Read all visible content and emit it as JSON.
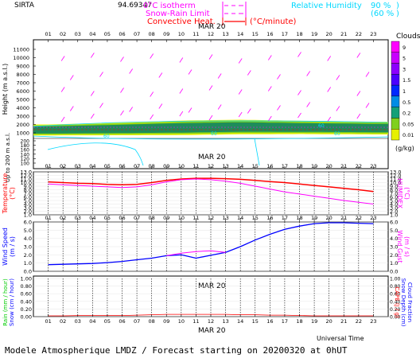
{
  "header": {
    "station": "SIRTA",
    "station_id": "94.69347",
    "legend": {
      "isotherm": "0°C isotherm",
      "snow_rain": "Snow-Rain Limit",
      "convective": "Convective Heat.",
      "convective_unit": "(°C/minute)",
      "rh": "Relative Humidity",
      "rh_90": "90 %",
      "rh_60": "(60 %"
    }
  },
  "dates": {
    "top": "MAR 20",
    "mid": "MAR 20",
    "low": "MAR 20",
    "bottom": "MAR 20"
  },
  "hours": [
    "01",
    "02",
    "03",
    "04",
    "05",
    "06",
    "07",
    "08",
    "09",
    "10",
    "11",
    "12",
    "13",
    "14",
    "15",
    "16",
    "17",
    "18",
    "19",
    "20",
    "21",
    "22",
    "23"
  ],
  "footer": {
    "universal_time": "Universal Time",
    "caption": "Modele Atmospherique LMDZ / Forecast starting on 20200320 at 0hUT"
  },
  "colors": {
    "temperature": "#ff0000",
    "humidex": "#ff00ff",
    "wind": "#0000ff",
    "gust": "#ff00ff",
    "rh": "#00d8ff",
    "cloud_dark": "#1e8c5a",
    "cloud_mid": "#7fd01e",
    "cloud_light": "#f0f000"
  },
  "chart_data": [
    {
      "type": "heatmap",
      "ylabel": "Height (m a.s.l.)",
      "ylabel_lower": "Up to 200 m a.s.l.",
      "yticks_upper": [
        "11000",
        "10000",
        "9000",
        "8000",
        "7000",
        "6000",
        "5000",
        "4000",
        "3000",
        "2000",
        "1000"
      ],
      "yticks_lower": [
        "200",
        "180",
        "160",
        "140",
        "120",
        "100"
      ],
      "rh_contour_label": "60",
      "colorbar": {
        "title": "Clouds",
        "unit": "(g/kg)",
        "levels": [
          "9",
          "5",
          "3",
          "1.5",
          "1",
          "0.5",
          "0.2",
          "0.05",
          "0.01"
        ],
        "colors": [
          "#ff00ff",
          "#c800ff",
          "#8c00ff",
          "#4b00ff",
          "#0028ff",
          "#008ce6",
          "#14a078",
          "#7fd01e",
          "#e6f000"
        ]
      },
      "cloud_layer": [
        {
          "hour": 1,
          "base": 900,
          "top": 1800,
          "density": 0.6
        },
        {
          "hour": 6,
          "base": 950,
          "top": 2000,
          "density": 0.8
        },
        {
          "hour": 10,
          "base": 1000,
          "top": 2200,
          "density": 1.0
        },
        {
          "hour": 14,
          "base": 1100,
          "top": 2300,
          "density": 1.0
        },
        {
          "hour": 18,
          "base": 1100,
          "top": 2200,
          "density": 0.8
        },
        {
          "hour": 23,
          "base": 1050,
          "top": 2100,
          "density": 0.6
        }
      ]
    },
    {
      "type": "line",
      "ylabel": "Temperature",
      "ylabel_unit": "(°C)",
      "y2label": "HUMIDEX",
      "y2label_unit": "(°C)",
      "yticks": [
        "13.0",
        "12.0",
        "11.0",
        "10.0",
        "9.0",
        "8.0",
        "7.0",
        "6.0",
        "5.0",
        "4.0",
        "3.0",
        "2.0",
        "1.0"
      ],
      "ylim": [
        1.0,
        13.0
      ],
      "x": [
        1,
        2,
        3,
        4,
        5,
        6,
        7,
        8,
        9,
        10,
        11,
        12,
        13,
        14,
        15,
        16,
        17,
        18,
        19,
        20,
        21,
        22,
        23
      ],
      "series": [
        {
          "name": "Temperature",
          "values": [
            10.2,
            10.0,
            9.8,
            9.7,
            9.5,
            9.4,
            9.5,
            10.0,
            10.6,
            11.0,
            11.2,
            11.2,
            11.1,
            10.9,
            10.6,
            10.3,
            10.0,
            9.6,
            9.2,
            8.8,
            8.4,
            8.0,
            7.5
          ]
        },
        {
          "name": "HUMIDEX",
          "values": [
            9.6,
            9.4,
            9.2,
            9.0,
            8.8,
            8.6,
            8.8,
            9.4,
            10.2,
            10.8,
            11.0,
            10.8,
            10.4,
            9.8,
            9.0,
            8.2,
            7.4,
            6.8,
            6.2,
            5.6,
            5.0,
            4.5,
            4.0
          ]
        }
      ]
    },
    {
      "type": "line",
      "ylabel": "Wind Speed",
      "ylabel_unit": "(m / s)",
      "y2label": "Wind Gust",
      "y2label_unit": "(m / s)",
      "yticks": [
        "6.0",
        "5.0",
        "4.0",
        "3.0",
        "2.0",
        "1.0",
        "0.0"
      ],
      "ylim": [
        0.0,
        6.0
      ],
      "x": [
        1,
        2,
        3,
        4,
        5,
        6,
        7,
        8,
        9,
        10,
        11,
        12,
        13,
        14,
        15,
        16,
        17,
        18,
        19,
        20,
        21,
        22,
        23
      ],
      "series": [
        {
          "name": "Wind Speed",
          "values": [
            0.8,
            0.85,
            0.9,
            0.95,
            1.05,
            1.2,
            1.4,
            1.6,
            1.9,
            2.0,
            1.6,
            1.95,
            2.3,
            3.0,
            3.8,
            4.5,
            5.1,
            5.5,
            5.8,
            5.9,
            5.9,
            5.85,
            5.8
          ]
        },
        {
          "name": "Wind Gust",
          "values": [
            null,
            null,
            null,
            null,
            null,
            null,
            null,
            null,
            1.9,
            2.2,
            2.4,
            2.5,
            2.3,
            null,
            null,
            null,
            null,
            null,
            null,
            null,
            null,
            null,
            null
          ]
        }
      ]
    },
    {
      "type": "line",
      "ylabel_rain": "Rain (mm / hour)",
      "ylabel_snow": "Snow (cm / hour)",
      "y2label_cape": "CAPE (J / g)",
      "y2label_snow_depth": "Snow Depth (cm)",
      "y2label_cloud_fraction": "Cloud Fraction",
      "yticks": [
        "1.00",
        "0.80",
        "0.60",
        "0.40",
        "0.20",
        "0.00"
      ],
      "ylim": [
        0.0,
        1.0
      ],
      "x": [
        1,
        2,
        3,
        4,
        5,
        6,
        7,
        8,
        9,
        10,
        11,
        12,
        13,
        14,
        15,
        16,
        17,
        18,
        19,
        20,
        21,
        22,
        23
      ],
      "series": [
        {
          "name": "CAPE",
          "values": [
            0.02,
            0.02,
            0.03,
            0.03,
            0.03,
            0.03,
            0.04,
            0.05,
            0.06,
            0.06,
            0.06,
            0.06,
            0.06,
            0.05,
            0.05,
            0.04,
            0.04,
            0.03,
            0.02,
            0.02,
            0.02,
            0.02,
            0.02
          ]
        }
      ]
    }
  ]
}
